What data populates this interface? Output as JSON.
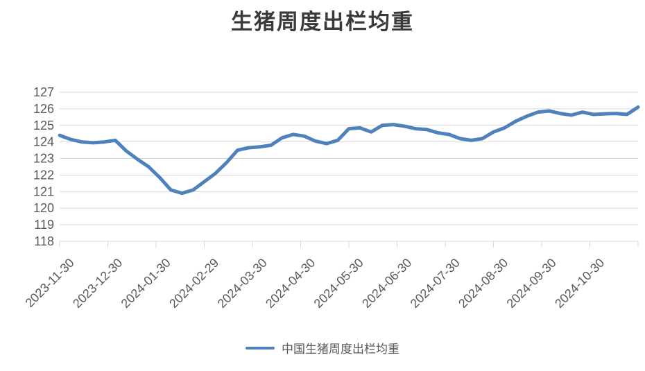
{
  "chart_data": {
    "type": "line",
    "title": "生猪周度出栏均重",
    "legend_position": "bottom",
    "grid": "horizontal",
    "x_frequency": "weekly",
    "x_tick_labels": [
      "2023-11-30",
      "2023-12-30",
      "2024-01-30",
      "2024-02-29",
      "2024-03-30",
      "2024-04-30",
      "2024-05-30",
      "2024-06-30",
      "2024-07-30",
      "2024-08-30",
      "2024-09-30",
      "2024-10-30"
    ],
    "y_tick_labels": [
      118,
      119,
      120,
      121,
      122,
      123,
      124,
      125,
      126,
      127
    ],
    "ylim": [
      118,
      127
    ],
    "series": [
      {
        "name": "中国生猪周度出栏均重",
        "color": "#4f81bd",
        "values": [
          124.4,
          124.15,
          124.0,
          123.95,
          124.0,
          124.1,
          123.45,
          122.95,
          122.5,
          121.85,
          121.1,
          120.9,
          121.1,
          121.6,
          122.1,
          122.75,
          123.5,
          123.65,
          123.7,
          123.8,
          124.25,
          124.45,
          124.35,
          124.05,
          123.9,
          124.1,
          124.8,
          124.85,
          124.6,
          125.0,
          125.05,
          124.95,
          124.8,
          124.75,
          124.55,
          124.45,
          124.2,
          124.1,
          124.2,
          124.6,
          124.85,
          125.25,
          125.55,
          125.8,
          125.87,
          125.72,
          125.62,
          125.8,
          125.66,
          125.7,
          125.72,
          125.66,
          126.1
        ]
      }
    ]
  },
  "styles": {
    "line_color": "#4f81bd",
    "grid_color": "#d9d9d9",
    "axis_color": "#d9d9d9",
    "tick_label_color": "#595959",
    "title_color": "#3a3a3a"
  }
}
